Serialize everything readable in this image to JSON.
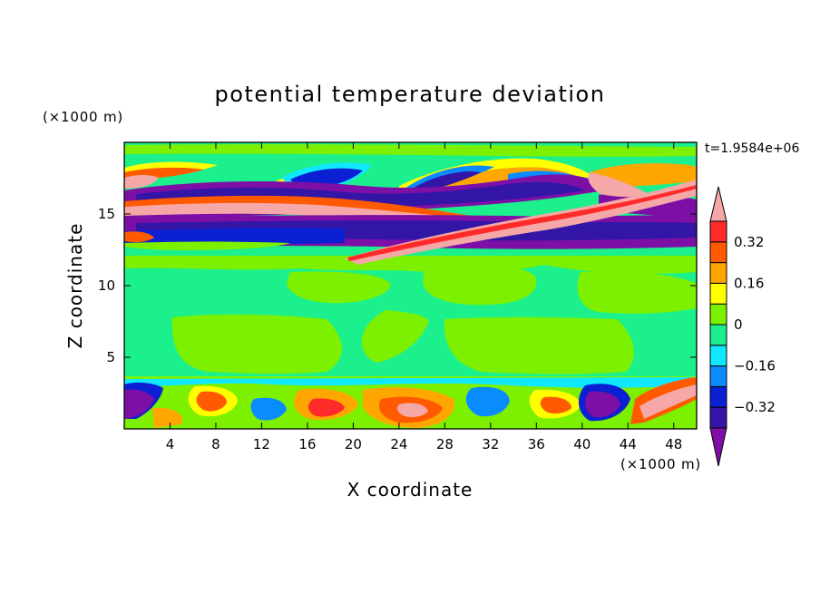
{
  "chart_data": {
    "type": "heatmap",
    "title": "potential temperature deviation",
    "xlabel": "X coordinate",
    "ylabel": "Z coordinate",
    "x_unit": "(×1000 m)",
    "y_unit": "(×1000 m)",
    "time_label": "t=1.9584e+06",
    "xlim": [
      0,
      50
    ],
    "ylim": [
      0,
      20
    ],
    "x_ticks": [
      4,
      8,
      12,
      16,
      20,
      24,
      28,
      32,
      36,
      40,
      44,
      48
    ],
    "y_ticks": [
      5,
      10,
      15
    ],
    "colorbar": {
      "levels": [
        -0.4,
        -0.32,
        -0.24,
        -0.16,
        -0.08,
        0,
        0.08,
        0.16,
        0.24,
        0.32,
        0.4
      ],
      "labeled_levels": [
        0.32,
        0.16,
        0,
        -0.16,
        -0.32
      ],
      "labels": [
        "0.32",
        "0.16",
        "0",
        "−0.16",
        "−0.32"
      ],
      "colors": [
        "#7d0fa6",
        "#3316a6",
        "#0a20d2",
        "#0a8cff",
        "#10e8ff",
        "#1cf08c",
        "#7df000",
        "#ffff00",
        "#ffa600",
        "#ff5a00",
        "#ff2a2a",
        "#f6a7a7"
      ]
    }
  }
}
